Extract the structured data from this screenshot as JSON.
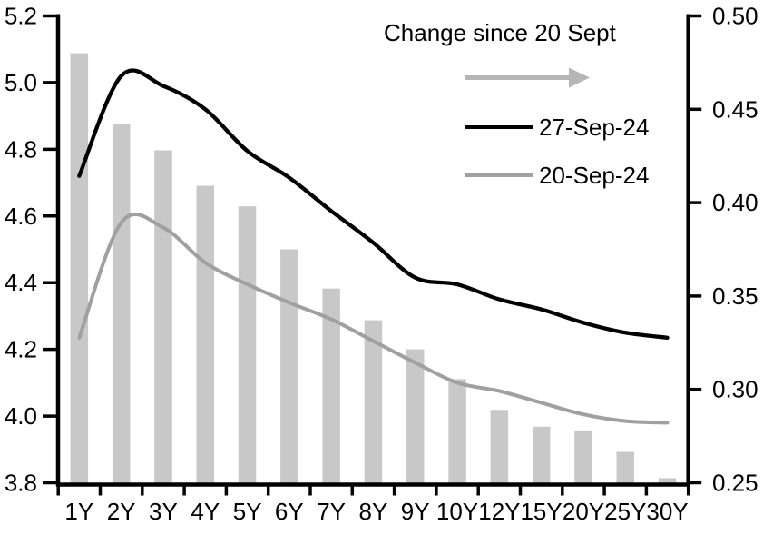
{
  "chart_data": {
    "type": "combo",
    "title": "",
    "categories": [
      "1Y",
      "2Y",
      "3Y",
      "4Y",
      "5Y",
      "6Y",
      "7Y",
      "8Y",
      "9Y",
      "10Y",
      "12Y",
      "15Y",
      "20Y",
      "25Y",
      "30Y"
    ],
    "series": [
      {
        "name": "Change since 20 Sept",
        "type": "bar",
        "axis": "right",
        "values": [
          0.48,
          0.442,
          0.428,
          0.409,
          0.398,
          0.375,
          0.354,
          0.337,
          0.3215,
          0.3055,
          0.289,
          0.28,
          0.278,
          0.2665,
          0.2525
        ]
      },
      {
        "name": "27-Sep-24",
        "type": "line",
        "axis": "left",
        "values": [
          4.72,
          5.02,
          4.99,
          4.92,
          4.795,
          4.715,
          4.615,
          4.52,
          4.415,
          4.395,
          4.35,
          4.32,
          4.28,
          4.25,
          4.235
        ]
      },
      {
        "name": "20-Sep-24",
        "type": "line",
        "axis": "left",
        "values": [
          4.235,
          4.58,
          4.565,
          4.46,
          4.395,
          4.34,
          4.29,
          4.225,
          4.16,
          4.1,
          4.075,
          4.04,
          4.005,
          3.985,
          3.98
        ]
      }
    ],
    "left_axis": {
      "min": 3.8,
      "max": 5.2,
      "step": 0.2,
      "tick_labels": [
        "5.2",
        "5.0",
        "4.8",
        "4.6",
        "4.4",
        "4.2",
        "4.0",
        "3.8"
      ]
    },
    "right_axis": {
      "min": 0.25,
      "max": 0.5,
      "step": 0.05,
      "tick_labels": [
        "0.50",
        "0.45",
        "0.40",
        "0.35",
        "0.30",
        "0.25"
      ]
    },
    "legend": {
      "title": "Change since 20 Sept",
      "arrow_icon": "right-arrow",
      "items": [
        {
          "label": "27-Sep-24"
        },
        {
          "label": "20-Sep-24"
        }
      ]
    },
    "grid": "off",
    "legend_position": "top-right-inside"
  },
  "colors": {
    "bar": "#c8c8c8",
    "line_27sep": "#000000",
    "line_20sep": "#a0a0a0",
    "arrow": "#b5b5b5",
    "axis": "#000000",
    "text": "#000000"
  }
}
